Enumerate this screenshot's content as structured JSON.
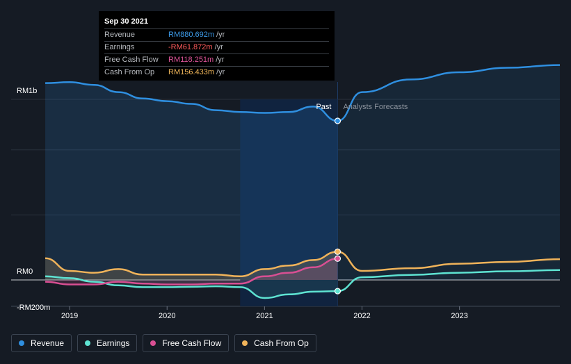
{
  "tooltip": {
    "date": "Sep 30 2021",
    "rows": [
      {
        "label": "Revenue",
        "value": "RM880.692m",
        "unit": "/yr",
        "color": "#3d9be9"
      },
      {
        "label": "Earnings",
        "value": "-RM61.872m",
        "unit": "/yr",
        "color": "#ff5c5c"
      },
      {
        "label": "Free Cash Flow",
        "value": "RM118.251m",
        "unit": "/yr",
        "color": "#e0559a"
      },
      {
        "label": "Cash From Op",
        "value": "RM156.433m",
        "unit": "/yr",
        "color": "#f2b75a"
      }
    ]
  },
  "legend": [
    {
      "label": "Revenue",
      "color": "#2f8fe0"
    },
    {
      "label": "Earnings",
      "color": "#5ee3d2"
    },
    {
      "label": "Free Cash Flow",
      "color": "#d94f93"
    },
    {
      "label": "Cash From Op",
      "color": "#f0b35a"
    }
  ],
  "chart_data": {
    "type": "line",
    "y_tick_labels": [
      "RM1b",
      "RM0",
      "-RM200m"
    ],
    "y_ticks": [
      1000,
      0,
      -200
    ],
    "ylim": [
      -200,
      1150
    ],
    "xlim": [
      2018.4,
      2024.03
    ],
    "x_tick_labels": [
      "2019",
      "2020",
      "2021",
      "2022",
      "2023"
    ],
    "x_ticks": [
      2019,
      2020,
      2021,
      2022,
      2023
    ],
    "past_label": "Past",
    "forecast_label": "Analysts Forecasts",
    "past_end": 2021.75,
    "highlight_start": 2020.75,
    "grid": true,
    "series": [
      {
        "name": "Revenue",
        "color": "#2f8fe0",
        "fill": true,
        "values": [
          [
            2018.75,
            1090
          ],
          [
            2019.0,
            1095
          ],
          [
            2019.25,
            1080
          ],
          [
            2019.5,
            1040
          ],
          [
            2019.75,
            1005
          ],
          [
            2020.0,
            990
          ],
          [
            2020.25,
            975
          ],
          [
            2020.5,
            940
          ],
          [
            2020.75,
            930
          ],
          [
            2021.0,
            925
          ],
          [
            2021.25,
            930
          ],
          [
            2021.5,
            960
          ],
          [
            2021.75,
            880.692
          ]
        ],
        "forecast": [
          [
            2021.75,
            880.692
          ],
          [
            2022.0,
            1040
          ],
          [
            2022.5,
            1110
          ],
          [
            2023.0,
            1150
          ],
          [
            2023.5,
            1175
          ],
          [
            2024.03,
            1190
          ]
        ]
      },
      {
        "name": "Earnings",
        "color": "#5ee3d2",
        "fill": true,
        "values": [
          [
            2018.75,
            20
          ],
          [
            2019.0,
            10
          ],
          [
            2019.25,
            -10
          ],
          [
            2019.5,
            -30
          ],
          [
            2019.75,
            -40
          ],
          [
            2020.0,
            -40
          ],
          [
            2020.25,
            -38
          ],
          [
            2020.5,
            -35
          ],
          [
            2020.75,
            -40
          ],
          [
            2021.0,
            -100
          ],
          [
            2021.25,
            -80
          ],
          [
            2021.5,
            -65
          ],
          [
            2021.75,
            -61.872
          ]
        ],
        "forecast": [
          [
            2021.75,
            -61.872
          ],
          [
            2022.0,
            15
          ],
          [
            2022.5,
            28
          ],
          [
            2023.0,
            40
          ],
          [
            2023.5,
            48
          ],
          [
            2024.03,
            55
          ]
        ]
      },
      {
        "name": "Free Cash Flow",
        "color": "#d94f93",
        "fill": true,
        "values": [
          [
            2018.75,
            -10
          ],
          [
            2019.0,
            -25
          ],
          [
            2019.25,
            -25
          ],
          [
            2019.5,
            -10
          ],
          [
            2019.75,
            -20
          ],
          [
            2020.0,
            -25
          ],
          [
            2020.25,
            -25
          ],
          [
            2020.5,
            -20
          ],
          [
            2020.75,
            -20
          ],
          [
            2021.0,
            20
          ],
          [
            2021.25,
            40
          ],
          [
            2021.5,
            70
          ],
          [
            2021.75,
            118.251
          ]
        ],
        "forecast": []
      },
      {
        "name": "Cash From Op",
        "color": "#f0b35a",
        "fill": true,
        "values": [
          [
            2018.75,
            120
          ],
          [
            2019.0,
            50
          ],
          [
            2019.25,
            40
          ],
          [
            2019.5,
            60
          ],
          [
            2019.75,
            30
          ],
          [
            2020.0,
            30
          ],
          [
            2020.25,
            30
          ],
          [
            2020.5,
            30
          ],
          [
            2020.75,
            20
          ],
          [
            2021.0,
            60
          ],
          [
            2021.25,
            80
          ],
          [
            2021.5,
            110
          ],
          [
            2021.75,
            156.433
          ]
        ],
        "forecast": [
          [
            2021.75,
            156.433
          ],
          [
            2022.0,
            50
          ],
          [
            2022.5,
            65
          ],
          [
            2023.0,
            90
          ],
          [
            2023.5,
            100
          ],
          [
            2024.03,
            115
          ]
        ]
      }
    ]
  }
}
